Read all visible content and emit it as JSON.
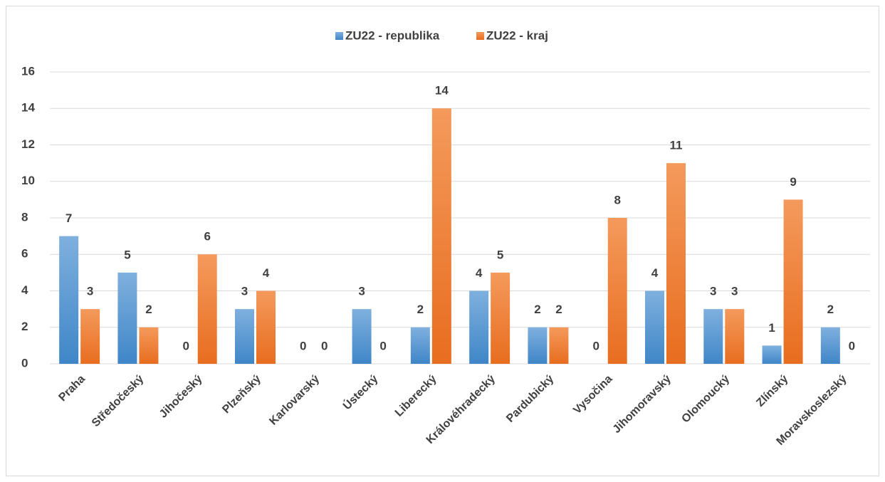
{
  "chart_data": {
    "type": "bar",
    "categories": [
      "Praha",
      "Středočeský",
      "Jihočeský",
      "Plzeňský",
      "Karlovarský",
      "Ústecký",
      "Liberecký",
      "Královéhradecký",
      "Pardubický",
      "Vysočina",
      "Jihomoravský",
      "Olomoucký",
      "Zlínský",
      "Moravskoslezský"
    ],
    "series": [
      {
        "name": "ZU22 - republika",
        "color": "#5b9bd5",
        "values": [
          7,
          5,
          0,
          3,
          0,
          3,
          2,
          4,
          2,
          0,
          4,
          3,
          1,
          2
        ]
      },
      {
        "name": "ZU22 - kraj",
        "color": "#ed7d31",
        "values": [
          3,
          2,
          6,
          4,
          0,
          0,
          14,
          5,
          2,
          8,
          11,
          3,
          9,
          0
        ]
      }
    ],
    "ylim": [
      0,
      16
    ],
    "yticks": [
      0,
      2,
      4,
      6,
      8,
      10,
      12,
      14,
      16
    ],
    "grid": true,
    "legend": "top"
  }
}
